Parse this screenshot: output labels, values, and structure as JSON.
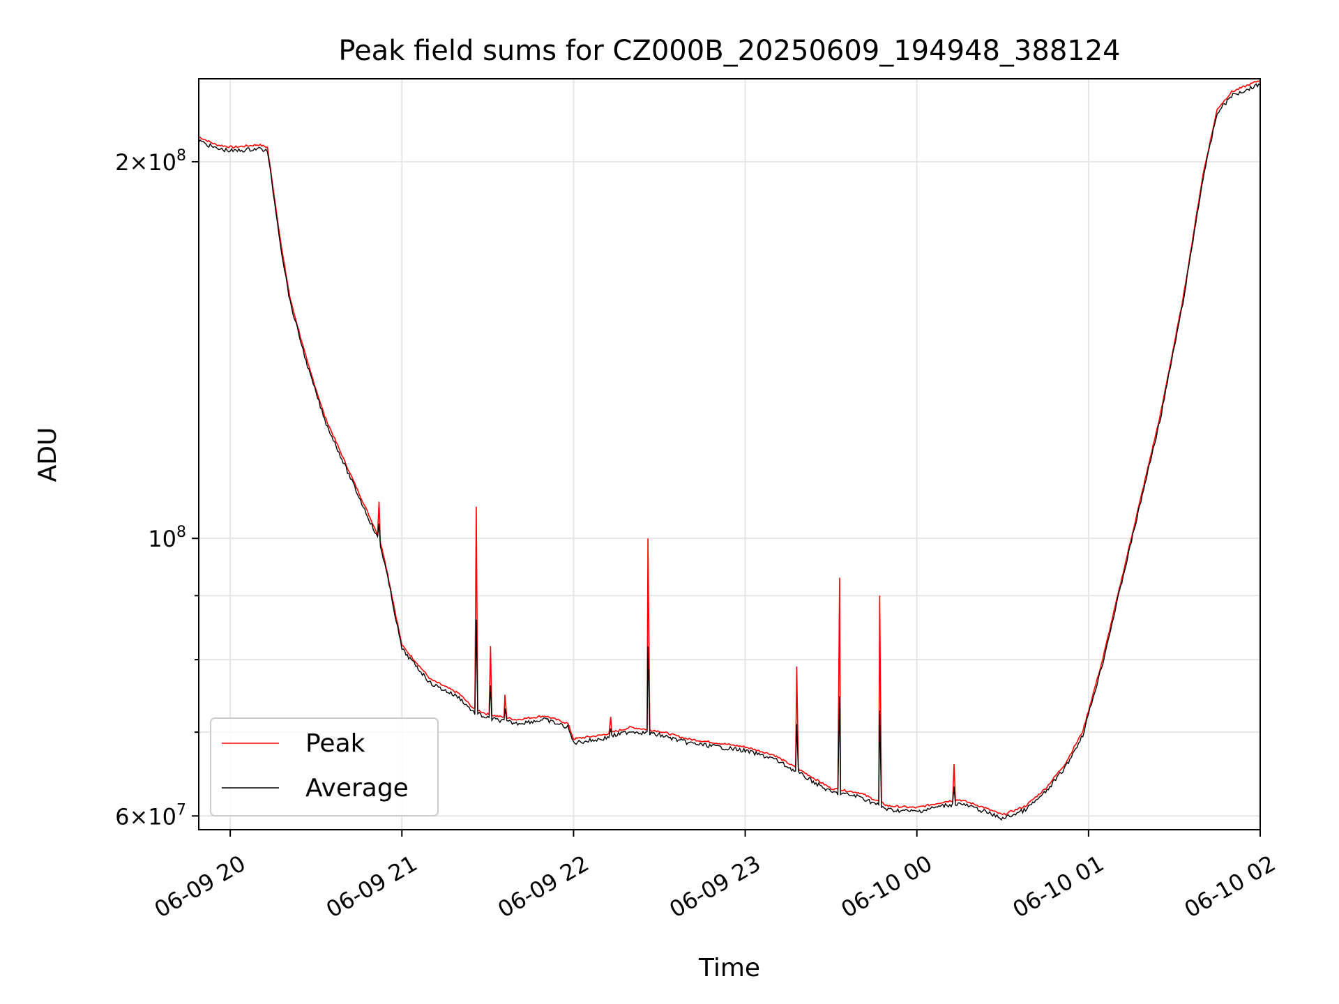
{
  "chart_data": {
    "type": "line",
    "title": "Peak field sums for CZ000B_20250609_194948_388124",
    "xlabel": "Time",
    "ylabel": "ADU",
    "yscale": "log",
    "xlim": [
      "2025-06-09T19:49",
      "2025-06-10T02:00"
    ],
    "ylim": [
      58500000,
      233000000
    ],
    "grid": true,
    "legend": "lower-left",
    "x_ticks": [
      {
        "t": "2025-06-09T20:00",
        "label": "06-09 20"
      },
      {
        "t": "2025-06-09T21:00",
        "label": "06-09 21"
      },
      {
        "t": "2025-06-09T22:00",
        "label": "06-09 22"
      },
      {
        "t": "2025-06-09T23:00",
        "label": "06-09 23"
      },
      {
        "t": "2025-06-10T00:00",
        "label": "06-10 00"
      },
      {
        "t": "2025-06-10T01:00",
        "label": "06-10 01"
      },
      {
        "t": "2025-06-10T02:00",
        "label": "06-10 02"
      }
    ],
    "y_major_ticks": [
      {
        "value": 60000000,
        "base": "6×10",
        "exp": "7"
      },
      {
        "value": 100000000,
        "base": "10",
        "exp": "8"
      },
      {
        "value": 200000000,
        "base": "2×10",
        "exp": "8"
      }
    ],
    "y_minor_grid": [
      70000000,
      80000000,
      90000000
    ],
    "series": [
      {
        "name": "Peak",
        "color": "#ff0000",
        "points": [
          [
            "2025-06-09T19:49",
            209000000
          ],
          [
            "2025-06-09T19:55",
            206000000
          ],
          [
            "2025-06-09T20:01",
            205000000
          ],
          [
            "2025-06-09T20:10",
            206000000
          ],
          [
            "2025-06-09T20:13",
            205000000
          ],
          [
            "2025-06-09T20:18",
            170000000
          ],
          [
            "2025-06-09T20:21",
            155000000
          ],
          [
            "2025-06-09T20:27",
            138000000
          ],
          [
            "2025-06-09T20:33",
            125000000
          ],
          [
            "2025-06-09T20:40",
            115000000
          ],
          [
            "2025-06-09T20:47",
            106000000
          ],
          [
            "2025-06-09T20:52",
            100000000
          ],
          [
            "2025-06-09T20:54",
            96000000
          ],
          [
            "2025-06-09T21:00",
            82000000
          ],
          [
            "2025-06-09T21:10",
            77000000
          ],
          [
            "2025-06-09T21:20",
            75000000
          ],
          [
            "2025-06-09T21:25",
            73000000
          ],
          [
            "2025-06-09T21:30",
            72200000
          ],
          [
            "2025-06-09T21:40",
            71500000
          ],
          [
            "2025-06-09T21:50",
            72000000
          ],
          [
            "2025-06-09T21:58",
            71000000
          ],
          [
            "2025-06-09T22:00",
            69000000
          ],
          [
            "2025-06-09T22:10",
            69500000
          ],
          [
            "2025-06-09T22:20",
            70500000
          ],
          [
            "2025-06-09T22:30",
            70000000
          ],
          [
            "2025-06-09T22:40",
            69000000
          ],
          [
            "2025-06-09T22:50",
            68500000
          ],
          [
            "2025-06-09T23:00",
            68000000
          ],
          [
            "2025-06-09T23:10",
            67000000
          ],
          [
            "2025-06-09T23:20",
            65000000
          ],
          [
            "2025-06-09T23:30",
            63000000
          ],
          [
            "2025-06-09T23:40",
            62500000
          ],
          [
            "2025-06-09T23:50",
            61000000
          ],
          [
            "2025-06-10T00:00",
            60800000
          ],
          [
            "2025-06-10T00:10",
            61500000
          ],
          [
            "2025-06-10T00:15",
            61700000
          ],
          [
            "2025-06-10T00:22",
            61000000
          ],
          [
            "2025-06-10T00:30",
            60000000
          ],
          [
            "2025-06-10T00:38",
            61000000
          ],
          [
            "2025-06-10T00:45",
            63000000
          ],
          [
            "2025-06-10T00:52",
            66000000
          ],
          [
            "2025-06-10T00:58",
            70000000
          ],
          [
            "2025-06-10T01:05",
            80000000
          ],
          [
            "2025-06-10T01:15",
            100000000
          ],
          [
            "2025-06-10T01:25",
            125000000
          ],
          [
            "2025-06-10T01:33",
            155000000
          ],
          [
            "2025-06-10T01:40",
            195000000
          ],
          [
            "2025-06-10T01:45",
            220000000
          ],
          [
            "2025-06-10T01:50",
            227000000
          ],
          [
            "2025-06-10T02:00",
            232000000
          ]
        ],
        "spikes": [
          [
            "2025-06-09T20:52",
            107000000
          ],
          [
            "2025-06-09T21:26",
            106000000
          ],
          [
            "2025-06-09T21:31",
            82000000
          ],
          [
            "2025-06-09T21:36",
            75000000
          ],
          [
            "2025-06-09T22:26",
            100000000
          ],
          [
            "2025-06-09T22:13",
            72000000
          ],
          [
            "2025-06-09T23:18",
            79000000
          ],
          [
            "2025-06-09T23:33",
            93000000
          ],
          [
            "2025-06-09T23:47",
            90000000
          ],
          [
            "2025-06-10T00:13",
            66000000
          ]
        ]
      },
      {
        "name": "Average",
        "color": "#000000"
      }
    ]
  }
}
